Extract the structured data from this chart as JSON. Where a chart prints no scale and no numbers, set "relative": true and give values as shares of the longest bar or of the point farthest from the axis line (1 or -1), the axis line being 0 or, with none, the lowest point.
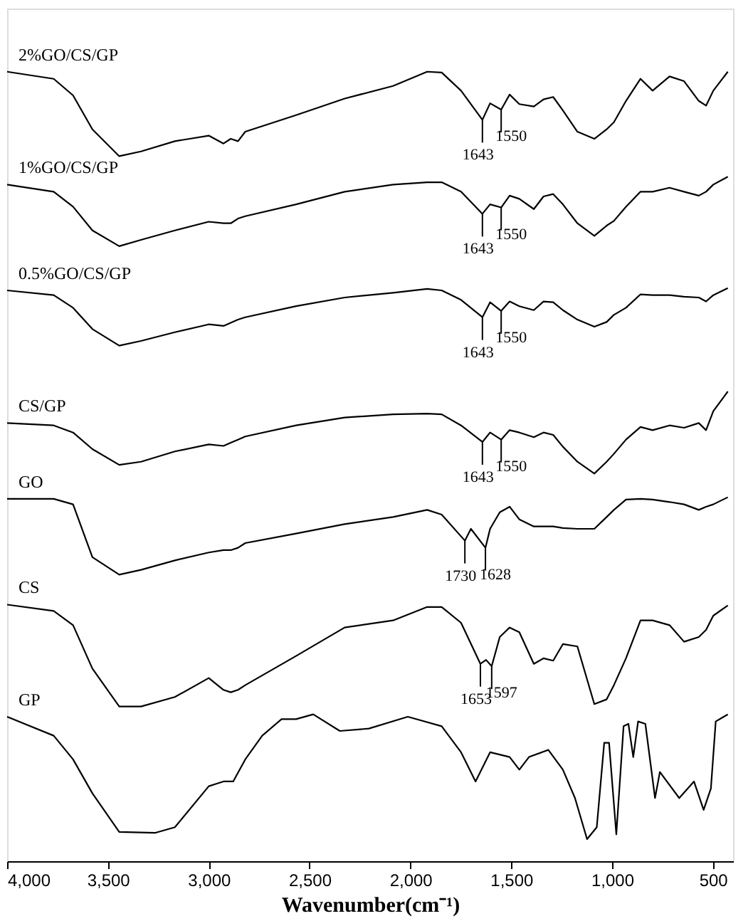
{
  "chart_data": {
    "type": "line",
    "relative": true,
    "xlabel": "Wavenumber(cm⁻¹)",
    "xlim": [
      4000,
      400
    ],
    "xticks": [
      {
        "value": 4000,
        "label": "4,000"
      },
      {
        "value": 3500,
        "label": "3,500"
      },
      {
        "value": 3000,
        "label": "3,000"
      },
      {
        "value": 2500,
        "label": "2,500"
      },
      {
        "value": 2000,
        "label": "2,000"
      },
      {
        "value": 1500,
        "label": "1,500"
      },
      {
        "value": 1000,
        "label": "1,000"
      },
      500
    ],
    "grid": false,
    "line_style": "solid",
    "x": [
      4000,
      3769,
      3673,
      3577,
      3444,
      3336,
      3168,
      3000,
      2927,
      2891,
      2855,
      2819,
      2567,
      2326,
      2086,
      1917,
      1845,
      1749,
      1643,
      1605,
      1550,
      1508,
      1460,
      1388,
      1340,
      1292,
      1244,
      1172,
      1088,
      1027,
      991,
      931,
      859,
      799,
      715,
      643,
      570,
      534,
      498,
      426
    ],
    "series": [
      {
        "name": "2%GO/CS/GP",
        "color": "#000000",
        "values": [
          1.0,
          0.991,
          0.97,
          0.927,
          0.893,
          0.899,
          0.912,
          0.919,
          0.909,
          0.915,
          0.912,
          0.924,
          0.945,
          0.966,
          0.982,
          1.0,
          0.999,
          0.976,
          0.939,
          0.96,
          0.952,
          0.971,
          0.959,
          0.956,
          0.965,
          0.968,
          0.951,
          0.924,
          0.915,
          0.927,
          0.936,
          0.963,
          0.991,
          0.976,
          0.994,
          0.988,
          0.963,
          0.957,
          0.976,
          1.0
        ]
      },
      {
        "name": "1%GO/CS/GP",
        "color": "#000000",
        "values": [
          0.857,
          0.848,
          0.829,
          0.799,
          0.779,
          0.787,
          0.799,
          0.81,
          0.808,
          0.808,
          0.814,
          0.817,
          0.832,
          0.848,
          0.857,
          0.86,
          0.86,
          0.848,
          0.82,
          0.832,
          0.828,
          0.843,
          0.839,
          0.826,
          0.842,
          0.845,
          0.832,
          0.808,
          0.792,
          0.805,
          0.811,
          0.829,
          0.848,
          0.848,
          0.853,
          0.848,
          0.843,
          0.848,
          0.857,
          0.867
        ]
      },
      {
        "name": "0.5%GO/CS/GP",
        "color": "#000000",
        "values": [
          0.723,
          0.717,
          0.701,
          0.674,
          0.653,
          0.659,
          0.67,
          0.68,
          0.678,
          0.682,
          0.686,
          0.689,
          0.703,
          0.714,
          0.72,
          0.725,
          0.723,
          0.711,
          0.689,
          0.708,
          0.697,
          0.709,
          0.703,
          0.698,
          0.709,
          0.708,
          0.698,
          0.686,
          0.677,
          0.683,
          0.692,
          0.701,
          0.718,
          0.717,
          0.717,
          0.715,
          0.714,
          0.709,
          0.717,
          0.726
        ]
      },
      {
        "name": "CS/GP",
        "color": "#000000",
        "values": [
          0.555,
          0.552,
          0.543,
          0.522,
          0.502,
          0.506,
          0.519,
          0.528,
          0.526,
          0.53,
          0.534,
          0.538,
          0.552,
          0.562,
          0.566,
          0.567,
          0.566,
          0.552,
          0.531,
          0.543,
          0.534,
          0.546,
          0.543,
          0.537,
          0.543,
          0.54,
          0.525,
          0.506,
          0.491,
          0.506,
          0.516,
          0.534,
          0.55,
          0.546,
          0.552,
          0.549,
          0.555,
          0.546,
          0.57,
          0.595
        ]
      },
      {
        "name": "GO",
        "color": "#000000",
        "x": [
          4000,
          3769,
          3673,
          3577,
          3444,
          3336,
          3168,
          3000,
          2927,
          2891,
          2855,
          2819,
          2567,
          2326,
          2086,
          1917,
          1845,
          1730,
          1700,
          1628,
          1605,
          1557,
          1508,
          1460,
          1388,
          1340,
          1292,
          1244,
          1172,
          1088,
          1027,
          991,
          931,
          859,
          799,
          715,
          643,
          570,
          534,
          498,
          426
        ],
        "values": [
          0.459,
          0.459,
          0.452,
          0.385,
          0.363,
          0.369,
          0.381,
          0.391,
          0.394,
          0.394,
          0.397,
          0.403,
          0.415,
          0.427,
          0.436,
          0.445,
          0.439,
          0.406,
          0.421,
          0.397,
          0.421,
          0.442,
          0.449,
          0.433,
          0.424,
          0.424,
          0.424,
          0.422,
          0.421,
          0.421,
          0.436,
          0.445,
          0.458,
          0.459,
          0.458,
          0.455,
          0.452,
          0.445,
          0.449,
          0.452,
          0.461
        ]
      },
      {
        "name": "CS",
        "color": "#000000",
        "x": [
          4000,
          3769,
          3673,
          3577,
          3444,
          3336,
          3168,
          3000,
          2927,
          2891,
          2855,
          2819,
          2567,
          2326,
          2086,
          1917,
          1845,
          1749,
          1653,
          1625,
          1597,
          1557,
          1508,
          1460,
          1388,
          1340,
          1292,
          1244,
          1172,
          1088,
          1027,
          991,
          931,
          859,
          799,
          715,
          643,
          570,
          534,
          498,
          426
        ],
        "values": [
          0.325,
          0.317,
          0.299,
          0.244,
          0.196,
          0.196,
          0.208,
          0.232,
          0.217,
          0.214,
          0.217,
          0.223,
          0.26,
          0.296,
          0.305,
          0.322,
          0.322,
          0.302,
          0.25,
          0.255,
          0.247,
          0.284,
          0.296,
          0.29,
          0.25,
          0.257,
          0.254,
          0.275,
          0.272,
          0.199,
          0.205,
          0.223,
          0.257,
          0.305,
          0.305,
          0.299,
          0.278,
          0.284,
          0.293,
          0.311,
          0.324
        ]
      },
      {
        "name": "GP",
        "color": "#000000",
        "x": [
          4000,
          3769,
          3673,
          3577,
          3444,
          3264,
          3168,
          3000,
          2963,
          2927,
          2879,
          2819,
          2735,
          2639,
          2567,
          2482,
          2350,
          2206,
          2013,
          1845,
          1749,
          1677,
          1605,
          1508,
          1460,
          1412,
          1316,
          1244,
          1184,
          1124,
          1076,
          1039,
          1015,
          979,
          943,
          919,
          895,
          871,
          835,
          787,
          763,
          667,
          594,
          546,
          510,
          486,
          426
        ],
        "values": [
          0.183,
          0.159,
          0.129,
          0.086,
          0.037,
          0.036,
          0.043,
          0.095,
          0.098,
          0.101,
          0.101,
          0.129,
          0.159,
          0.18,
          0.18,
          0.186,
          0.165,
          0.168,
          0.183,
          0.171,
          0.138,
          0.101,
          0.138,
          0.132,
          0.116,
          0.132,
          0.141,
          0.116,
          0.08,
          0.028,
          0.043,
          0.15,
          0.15,
          0.034,
          0.171,
          0.174,
          0.132,
          0.177,
          0.174,
          0.08,
          0.113,
          0.08,
          0.101,
          0.065,
          0.092,
          0.177,
          0.186
        ]
      }
    ],
    "annotations": [
      {
        "text": "1643",
        "x": 1643,
        "y": 0.939
      },
      {
        "text": "1550",
        "x": 1550,
        "y": 0.952
      },
      {
        "text": "1643",
        "x": 1643,
        "y": 0.82
      },
      {
        "text": "1550",
        "x": 1550,
        "y": 0.828
      },
      {
        "text": "1643",
        "x": 1643,
        "y": 0.689
      },
      {
        "text": "1550",
        "x": 1550,
        "y": 0.697
      },
      {
        "text": "1643",
        "x": 1643,
        "y": 0.531
      },
      {
        "text": "1550",
        "x": 1550,
        "y": 0.534
      },
      {
        "text": "1730",
        "x": 1730,
        "y": 0.406
      },
      {
        "text": "1628",
        "x": 1628,
        "y": 0.397
      },
      {
        "text": "1653",
        "x": 1653,
        "y": 0.25
      },
      {
        "text": "1597",
        "x": 1597,
        "y": 0.247
      }
    ]
  }
}
